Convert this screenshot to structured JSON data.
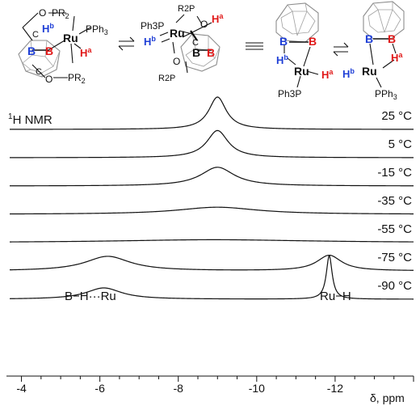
{
  "colors": {
    "boron_blue": "#1f3fd6",
    "hydride_red": "#e01818",
    "ink": "#111111",
    "cage": "#8c8c8c"
  },
  "scheme": {
    "s1": {
      "PR2_top": "PR2",
      "PR2_bottom": "PR2",
      "O_top": "O",
      "O_bottom": "O",
      "C_top": "C",
      "C_bottom": "C",
      "PPh3": "PPh3",
      "Ru": "Ru",
      "Hb": "Hb",
      "Ha": "Ha",
      "B1": "B",
      "B2": "B"
    },
    "s2": {
      "Ph3P": "Ph3P",
      "R2P": "R2P",
      "R2P_bottom": "R2P",
      "O_top": "O",
      "O_bottom": "O",
      "C": "C",
      "Ru": "Ru",
      "Hb": "Hb",
      "Ha": "Ha",
      "B1": "B",
      "B2": "B"
    },
    "s3": {
      "Ru": "Ru",
      "Hb": "Hb",
      "Ha": "Ha",
      "Ph3P": "Ph3P",
      "B1": "B",
      "B2": "B"
    },
    "s4": {
      "Ru": "Ru",
      "Hb": "Hb",
      "Ha": "Ha",
      "PPh3": "PPh3",
      "B1": "B",
      "B2": "B"
    }
  },
  "nmr_label": "1H NMR",
  "peak_labels": {
    "left": "B−H···Ru",
    "right": "Ru−H"
  },
  "axis": {
    "unit_label": "δ, ppm",
    "ticks": [
      "-4",
      "-6",
      "-8",
      "-10",
      "-12"
    ]
  },
  "chart_data": {
    "type": "line",
    "title": "1H NMR",
    "xlabel": "δ, ppm",
    "ylabel": "",
    "xlim": [
      -3.7,
      -14.0
    ],
    "x_ticks": [
      -4,
      -6,
      -8,
      -10,
      -12
    ],
    "grid": false,
    "series": [
      {
        "name": "25 °C",
        "label": "25 °C",
        "peaks": [
          {
            "center": -9.0,
            "height": 1.0,
            "width": 0.27
          }
        ]
      },
      {
        "name": "5 °C",
        "label": "5 °C",
        "peaks": [
          {
            "center": -9.0,
            "height": 0.84,
            "width": 0.33
          }
        ]
      },
      {
        "name": "-15 °C",
        "label": "-15 °C",
        "peaks": [
          {
            "center": -9.0,
            "height": 0.58,
            "width": 0.52
          }
        ]
      },
      {
        "name": "-35 °C",
        "label": "-35 °C",
        "peaks": [
          {
            "center": -9.0,
            "height": 0.22,
            "width": 1.25
          }
        ]
      },
      {
        "name": "-55 °C",
        "label": "-55 °C",
        "peaks": [
          {
            "center": -8.9,
            "height": 0.09,
            "width": 3.0
          }
        ]
      },
      {
        "name": "-75 °C",
        "label": "-75 °C",
        "peaks": [
          {
            "center": -6.2,
            "height": 0.45,
            "width": 0.7
          },
          {
            "center": -11.85,
            "height": 0.48,
            "width": 0.38
          }
        ]
      },
      {
        "name": "-90 °C",
        "label": "-90 °C",
        "peaks": [
          {
            "center": -6.1,
            "height": 0.35,
            "width": 0.55
          },
          {
            "center": -11.85,
            "height": 1.35,
            "width": 0.09
          }
        ]
      }
    ]
  }
}
